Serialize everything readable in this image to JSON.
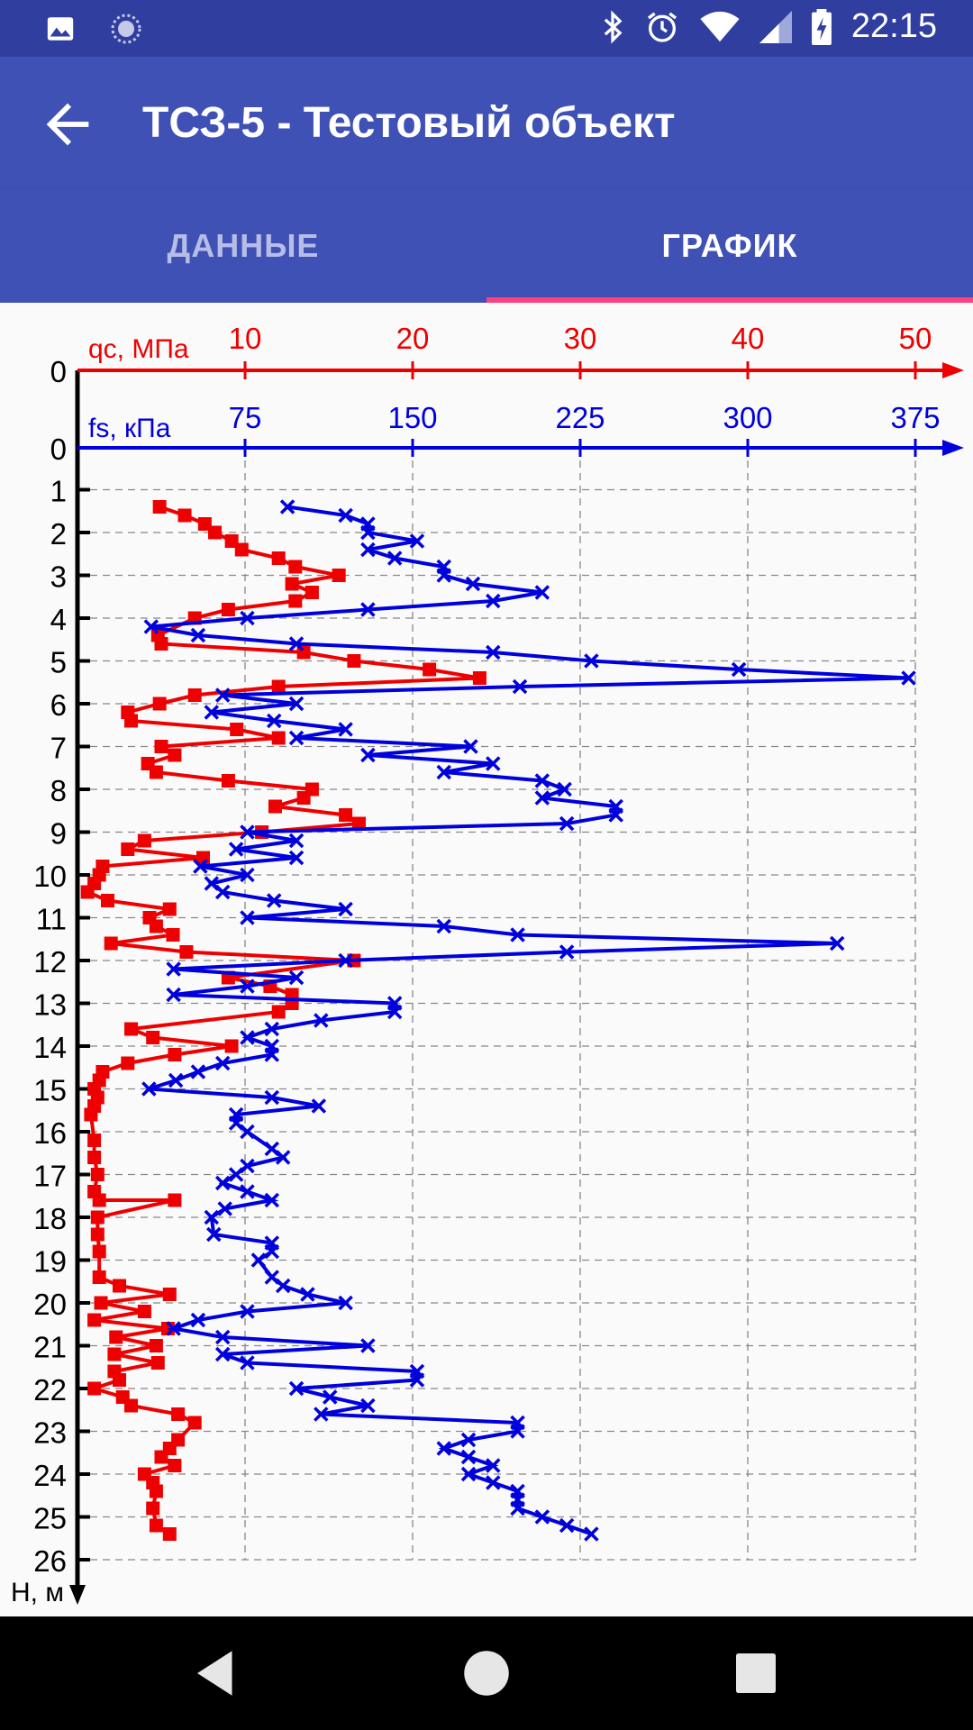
{
  "status_bar": {
    "time": "22:15",
    "left_icons": [
      "image-notification-icon",
      "sync-notification-icon"
    ],
    "right_icons": [
      "bluetooth-icon",
      "alarm-icon",
      "wifi-icon",
      "signal-icon",
      "battery-charging-icon"
    ]
  },
  "app_bar": {
    "title": "ТСЗ-5 - Тестовый объект",
    "back_icon": "arrow-back-icon"
  },
  "tabs": [
    {
      "label": "ДАННЫЕ",
      "active": false
    },
    {
      "label": "ГРАФИК",
      "active": true
    }
  ],
  "colors": {
    "primary": "#3f51b5",
    "primary_dark": "#303f9f",
    "accent": "#ff4081",
    "qc_series": "#ee0000",
    "fs_series": "#0000dd"
  },
  "chart_data": {
    "type": "line",
    "y_axis": {
      "label": "Н, м",
      "range": [
        0,
        26
      ],
      "ticks": [
        "0",
        "1",
        "2",
        "3",
        "4",
        "5",
        "6",
        "7",
        "8",
        "9",
        "10",
        "11",
        "12",
        "13",
        "14",
        "15",
        "16",
        "17",
        "18",
        "19",
        "20",
        "21",
        "22",
        "23",
        "24",
        "25",
        "26"
      ],
      "direction": "down"
    },
    "qc_axis": {
      "label": "qc, МПа",
      "range": [
        0,
        50
      ],
      "ticks": [
        "10",
        "20",
        "30",
        "40",
        "50"
      ],
      "zero_label": "0"
    },
    "fs_axis": {
      "label": "fs, кПа",
      "range": [
        0,
        375
      ],
      "ticks": [
        "75",
        "150",
        "225",
        "300",
        "375"
      ],
      "zero_label": "0"
    },
    "grid": true,
    "series": [
      {
        "axis": "qc",
        "marker": "square",
        "points": [
          [
            4.9,
            1.4
          ],
          [
            6.4,
            1.6
          ],
          [
            7.6,
            1.8
          ],
          [
            8.2,
            2.0
          ],
          [
            9.2,
            2.2
          ],
          [
            9.8,
            2.4
          ],
          [
            12.0,
            2.6
          ],
          [
            13.0,
            2.8
          ],
          [
            15.6,
            3.0
          ],
          [
            12.8,
            3.2
          ],
          [
            14.0,
            3.4
          ],
          [
            13.0,
            3.6
          ],
          [
            9.0,
            3.8
          ],
          [
            7.0,
            4.0
          ],
          [
            4.8,
            4.4
          ],
          [
            5.0,
            4.6
          ],
          [
            13.5,
            4.8
          ],
          [
            16.5,
            5.0
          ],
          [
            21.0,
            5.2
          ],
          [
            24.0,
            5.4
          ],
          [
            12.0,
            5.6
          ],
          [
            7.0,
            5.8
          ],
          [
            4.9,
            6.0
          ],
          [
            3.0,
            6.2
          ],
          [
            3.2,
            6.4
          ],
          [
            9.5,
            6.6
          ],
          [
            12.0,
            6.8
          ],
          [
            5.0,
            7.0
          ],
          [
            5.8,
            7.2
          ],
          [
            4.2,
            7.4
          ],
          [
            4.7,
            7.6
          ],
          [
            9.0,
            7.8
          ],
          [
            14.0,
            8.0
          ],
          [
            13.5,
            8.2
          ],
          [
            11.8,
            8.4
          ],
          [
            16.0,
            8.6
          ],
          [
            16.8,
            8.8
          ],
          [
            11.0,
            9.0
          ],
          [
            4.0,
            9.2
          ],
          [
            3.0,
            9.4
          ],
          [
            7.5,
            9.6
          ],
          [
            1.5,
            9.8
          ],
          [
            1.3,
            10.0
          ],
          [
            1.0,
            10.2
          ],
          [
            0.6,
            10.4
          ],
          [
            1.8,
            10.6
          ],
          [
            5.5,
            10.8
          ],
          [
            4.3,
            11.0
          ],
          [
            4.7,
            11.2
          ],
          [
            5.7,
            11.4
          ],
          [
            2.0,
            11.6
          ],
          [
            6.5,
            11.8
          ],
          [
            16.5,
            12.0
          ],
          [
            9.0,
            12.4
          ],
          [
            11.5,
            12.6
          ],
          [
            12.8,
            12.8
          ],
          [
            12.8,
            13.0
          ],
          [
            12.0,
            13.2
          ],
          [
            3.2,
            13.6
          ],
          [
            4.5,
            13.8
          ],
          [
            9.2,
            14.0
          ],
          [
            5.8,
            14.2
          ],
          [
            3.0,
            14.4
          ],
          [
            1.5,
            14.6
          ],
          [
            1.3,
            14.8
          ],
          [
            1.0,
            15.0
          ],
          [
            1.2,
            15.2
          ],
          [
            1.0,
            15.4
          ],
          [
            0.8,
            15.6
          ],
          [
            1.0,
            16.2
          ],
          [
            1.0,
            16.6
          ],
          [
            1.2,
            17.0
          ],
          [
            1.0,
            17.4
          ],
          [
            1.3,
            17.6
          ],
          [
            5.8,
            17.6
          ],
          [
            1.2,
            18.0
          ],
          [
            1.2,
            18.4
          ],
          [
            1.3,
            18.8
          ],
          [
            1.3,
            19.4
          ],
          [
            2.5,
            19.6
          ],
          [
            5.5,
            19.8
          ],
          [
            1.4,
            20.0
          ],
          [
            4.0,
            20.2
          ],
          [
            1.0,
            20.4
          ],
          [
            5.4,
            20.6
          ],
          [
            2.3,
            20.8
          ],
          [
            4.7,
            21.0
          ],
          [
            2.2,
            21.2
          ],
          [
            4.8,
            21.4
          ],
          [
            2.2,
            21.6
          ],
          [
            2.5,
            21.8
          ],
          [
            1.0,
            22.0
          ],
          [
            2.7,
            22.2
          ],
          [
            3.2,
            22.4
          ],
          [
            6.0,
            22.6
          ],
          [
            7.0,
            22.8
          ],
          [
            6.0,
            23.2
          ],
          [
            5.5,
            23.4
          ],
          [
            5.0,
            23.6
          ],
          [
            5.8,
            23.8
          ],
          [
            4.0,
            24.0
          ],
          [
            4.5,
            24.2
          ],
          [
            4.7,
            24.4
          ],
          [
            4.5,
            24.8
          ],
          [
            4.7,
            25.2
          ],
          [
            5.5,
            25.4
          ]
        ]
      },
      {
        "axis": "fs",
        "marker": "x",
        "points": [
          [
            94,
            1.4
          ],
          [
            120,
            1.6
          ],
          [
            130,
            1.8
          ],
          [
            130,
            2.0
          ],
          [
            152,
            2.2
          ],
          [
            130,
            2.4
          ],
          [
            142,
            2.6
          ],
          [
            164,
            2.8
          ],
          [
            164,
            3.0
          ],
          [
            177,
            3.2
          ],
          [
            208,
            3.4
          ],
          [
            186,
            3.6
          ],
          [
            130,
            3.8
          ],
          [
            76,
            4.0
          ],
          [
            33,
            4.2
          ],
          [
            54,
            4.4
          ],
          [
            98,
            4.6
          ],
          [
            186,
            4.8
          ],
          [
            230,
            5.0
          ],
          [
            296,
            5.2
          ],
          [
            372,
            5.4
          ],
          [
            198,
            5.6
          ],
          [
            65,
            5.8
          ],
          [
            98,
            6.0
          ],
          [
            60,
            6.2
          ],
          [
            88,
            6.4
          ],
          [
            120,
            6.6
          ],
          [
            98,
            6.8
          ],
          [
            176,
            7.0
          ],
          [
            130,
            7.2
          ],
          [
            186,
            7.4
          ],
          [
            164,
            7.6
          ],
          [
            208,
            7.8
          ],
          [
            218,
            8.0
          ],
          [
            208,
            8.2
          ],
          [
            241,
            8.4
          ],
          [
            241,
            8.6
          ],
          [
            219,
            8.8
          ],
          [
            76,
            9.0
          ],
          [
            98,
            9.2
          ],
          [
            71,
            9.4
          ],
          [
            98,
            9.6
          ],
          [
            55,
            9.8
          ],
          [
            76,
            10.0
          ],
          [
            60,
            10.2
          ],
          [
            65,
            10.4
          ],
          [
            88,
            10.6
          ],
          [
            120,
            10.8
          ],
          [
            76,
            11.0
          ],
          [
            164,
            11.2
          ],
          [
            197,
            11.4
          ],
          [
            340,
            11.6
          ],
          [
            219,
            11.8
          ],
          [
            120,
            12.0
          ],
          [
            43,
            12.2
          ],
          [
            98,
            12.4
          ],
          [
            76,
            12.6
          ],
          [
            43,
            12.8
          ],
          [
            142,
            13.0
          ],
          [
            142,
            13.2
          ],
          [
            109,
            13.4
          ],
          [
            87,
            13.6
          ],
          [
            76,
            13.8
          ],
          [
            87,
            14.0
          ],
          [
            87,
            14.2
          ],
          [
            65,
            14.4
          ],
          [
            54,
            14.6
          ],
          [
            44,
            14.8
          ],
          [
            32,
            15.0
          ],
          [
            87,
            15.2
          ],
          [
            108,
            15.4
          ],
          [
            71,
            15.6
          ],
          [
            71,
            15.8
          ],
          [
            76,
            16.0
          ],
          [
            87,
            16.4
          ],
          [
            92,
            16.6
          ],
          [
            76,
            16.8
          ],
          [
            71,
            17.0
          ],
          [
            65,
            17.2
          ],
          [
            76,
            17.4
          ],
          [
            87,
            17.6
          ],
          [
            66,
            17.8
          ],
          [
            60,
            18.0
          ],
          [
            61,
            18.4
          ],
          [
            87,
            18.6
          ],
          [
            87,
            18.8
          ],
          [
            81,
            19.0
          ],
          [
            87,
            19.4
          ],
          [
            92,
            19.6
          ],
          [
            103,
            19.8
          ],
          [
            120,
            20.0
          ],
          [
            76,
            20.2
          ],
          [
            54,
            20.4
          ],
          [
            43,
            20.6
          ],
          [
            65,
            20.8
          ],
          [
            130,
            21.0
          ],
          [
            65,
            21.2
          ],
          [
            76,
            21.4
          ],
          [
            152,
            21.6
          ],
          [
            152,
            21.8
          ],
          [
            98,
            22.0
          ],
          [
            113,
            22.2
          ],
          [
            130,
            22.4
          ],
          [
            109,
            22.6
          ],
          [
            197,
            22.8
          ],
          [
            197,
            23.0
          ],
          [
            175,
            23.2
          ],
          [
            164,
            23.4
          ],
          [
            175,
            23.6
          ],
          [
            186,
            23.8
          ],
          [
            175,
            24.0
          ],
          [
            186,
            24.2
          ],
          [
            197,
            24.4
          ],
          [
            197,
            24.6
          ],
          [
            197,
            24.8
          ],
          [
            208,
            25.0
          ],
          [
            219,
            25.2
          ],
          [
            230,
            25.4
          ]
        ]
      }
    ]
  }
}
